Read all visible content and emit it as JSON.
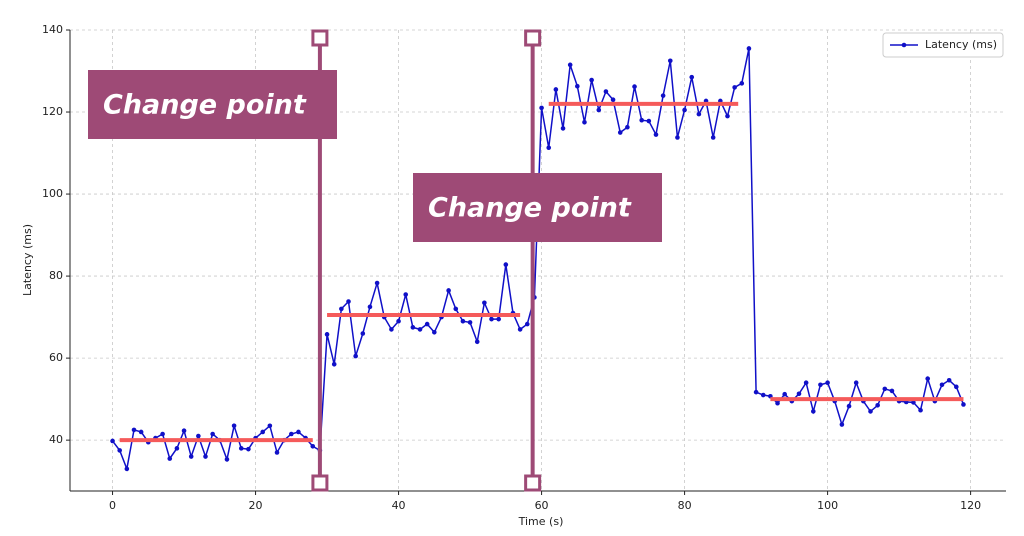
{
  "chart_data": {
    "type": "line",
    "xlabel": "Time (s)",
    "ylabel": "Latency (ms)",
    "x": [
      0,
      1,
      2,
      3,
      4,
      5,
      6,
      7,
      8,
      9,
      10,
      11,
      12,
      13,
      14,
      15,
      16,
      17,
      18,
      19,
      20,
      21,
      22,
      23,
      24,
      25,
      26,
      27,
      28,
      29,
      30,
      31,
      32,
      33,
      34,
      35,
      36,
      37,
      38,
      39,
      40,
      41,
      42,
      43,
      44,
      45,
      46,
      47,
      48,
      49,
      50,
      51,
      52,
      53,
      54,
      55,
      56,
      57,
      58,
      59,
      60,
      61,
      62,
      63,
      64,
      65,
      66,
      67,
      68,
      69,
      70,
      71,
      72,
      73,
      74,
      75,
      76,
      77,
      78,
      79,
      80,
      81,
      82,
      83,
      84,
      85,
      86,
      87,
      88,
      89,
      90,
      91,
      92,
      93,
      94,
      95,
      96,
      97,
      98,
      99,
      100,
      101,
      102,
      103,
      104,
      105,
      106,
      107,
      108,
      109,
      110,
      111,
      112,
      113,
      114,
      115,
      116,
      117,
      118,
      119
    ],
    "series": [
      {
        "name": "Latency (ms)",
        "color": "#1010c8",
        "values": [
          39.8,
          37.5,
          33,
          42.5,
          42,
          39.5,
          40.5,
          41.5,
          35.5,
          38,
          42.3,
          36,
          41,
          36,
          41.5,
          40,
          35.3,
          43.5,
          38,
          37.8,
          40.5,
          42,
          43.5,
          37,
          40,
          41.5,
          42,
          40.5,
          38.5,
          37.5,
          65.8,
          58.5,
          72,
          73.8,
          60.5,
          66,
          72.5,
          78.3,
          70,
          67,
          69,
          75.5,
          67.5,
          67,
          68.3,
          66.3,
          70,
          76.5,
          72,
          69,
          68.7,
          64,
          73.5,
          69.5,
          69.5,
          82.8,
          71,
          67,
          68.3,
          74.8,
          121,
          111.3,
          125.5,
          116,
          131.5,
          126.3,
          117.5,
          127.8,
          120.5,
          125,
          123,
          115,
          116.3,
          126.2,
          118,
          117.8,
          114.5,
          124,
          132.5,
          113.8,
          120.5,
          128.5,
          119.5,
          122.7,
          113.8,
          122.7,
          119,
          126,
          127,
          135.5,
          51.7,
          51,
          50.7,
          49,
          51.2,
          49.5,
          51.3,
          54,
          47,
          53.5,
          54,
          49.5,
          43.8,
          48.3,
          54,
          49.5,
          47,
          48.5,
          52.5,
          52,
          49.5,
          49.3,
          49.2,
          47.3,
          55,
          49.5,
          53.5,
          54.6,
          53,
          48.7
        ]
      }
    ],
    "segments_color": "#f55a5a",
    "segments": [
      {
        "x": [
          1,
          28
        ],
        "value": 40
      },
      {
        "x": [
          30,
          57
        ],
        "value": 70.5
      },
      {
        "x": [
          61,
          87.5
        ],
        "value": 122
      },
      {
        "x": [
          92,
          119
        ],
        "value": 50
      }
    ],
    "annotation_color": "#9e4a76",
    "annotations": [
      {
        "text": "Change point",
        "x": 29
      },
      {
        "text": "Change point",
        "x": 58.75
      }
    ],
    "xlim": [
      -5.95,
      124.95
    ],
    "ylim": [
      27.6,
      140
    ],
    "xticks": [
      0,
      20,
      40,
      60,
      80,
      100,
      120
    ],
    "yticks": [
      40,
      60,
      80,
      100,
      120,
      140
    ],
    "grid": true,
    "legend": "upper right"
  }
}
